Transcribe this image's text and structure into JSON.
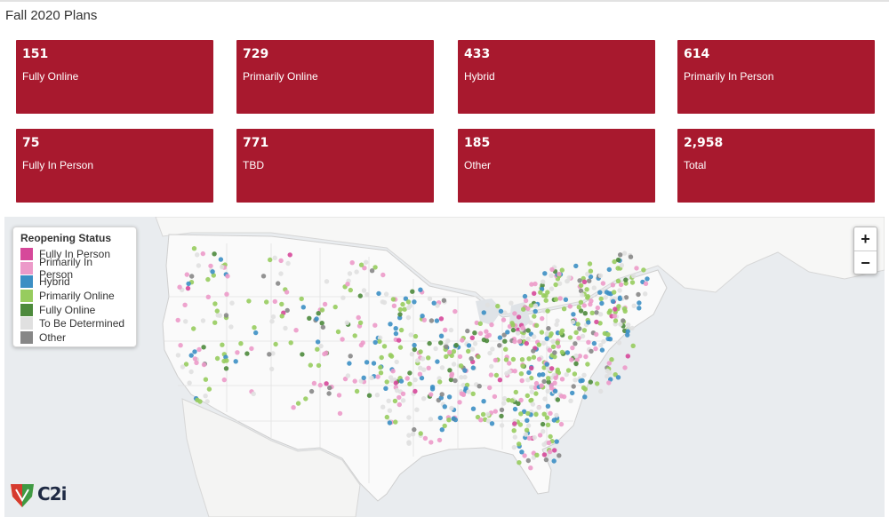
{
  "page": {
    "title": "Fall 2020 Plans"
  },
  "tiles": [
    {
      "value": "151",
      "label": "Fully Online"
    },
    {
      "value": "729",
      "label": "Primarily Online"
    },
    {
      "value": "433",
      "label": "Hybrid"
    },
    {
      "value": "614",
      "label": "Primarily In Person"
    },
    {
      "value": "75",
      "label": "Fully In Person"
    },
    {
      "value": "771",
      "label": "TBD"
    },
    {
      "value": "185",
      "label": "Other"
    },
    {
      "value": "2,958",
      "label": "Total"
    }
  ],
  "tile_color": "#a8192e",
  "map": {
    "legend": {
      "title": "Reopening Status",
      "items": [
        {
          "label": "Fully In Person",
          "color": "#d6489a"
        },
        {
          "label": "Primarily In Person",
          "color": "#ec9ac9"
        },
        {
          "label": "Hybrid",
          "color": "#3c8fc4"
        },
        {
          "label": "Primarily Online",
          "color": "#97cc5e"
        },
        {
          "label": "Fully Online",
          "color": "#4d8a3c"
        },
        {
          "label": "To Be Determined",
          "color": "#e0e0e0"
        },
        {
          "label": "Other",
          "color": "#878787"
        }
      ]
    },
    "zoom_in_label": "+",
    "zoom_out_label": "−",
    "logo_text": "C2i",
    "logo_icon": "shield-icon"
  }
}
